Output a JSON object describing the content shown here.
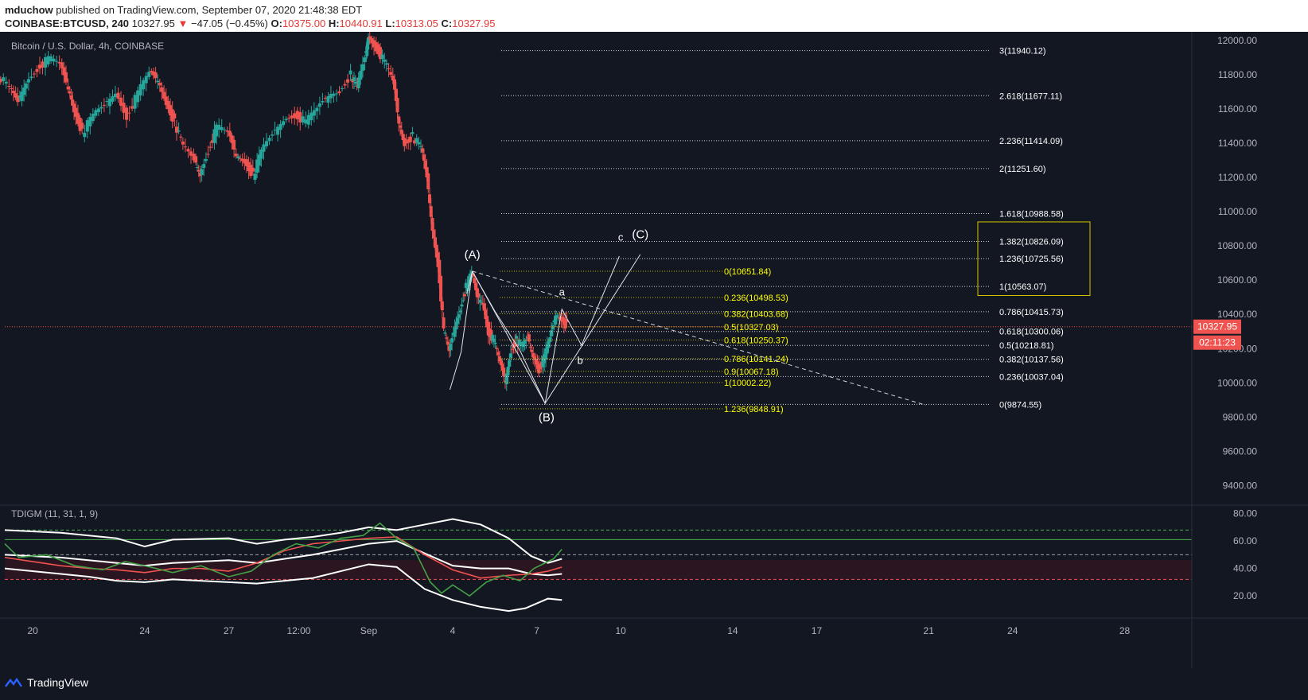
{
  "header": {
    "author": "mduchow",
    "published": "published on TradingView.com, September 07, 2020 21:48:38 EDT",
    "symbol_tf": "COINBASE:BTCUSD, 240",
    "last": "10327.95",
    "change": "−47.05 (−0.45%)",
    "o_label": "O:",
    "o": "10375.00",
    "h_label": "H:",
    "h": "10440.91",
    "l_label": "L:",
    "l": "10313.05",
    "c_label": "C:",
    "c": "10327.95"
  },
  "footer": {
    "brand": "TradingView"
  },
  "colors": {
    "bg": "#131722",
    "up": "#26a69a",
    "down": "#ef5350",
    "fib": "#ffff00",
    "axis_text": "#b2b5be",
    "box": "#d4c500"
  },
  "chart_data": [
    {
      "type": "candlestick",
      "title": "Bitcoin / U.S. Dollar, 4h, COINBASE",
      "ylim": [
        9300,
        12050
      ],
      "y_ticks": [
        "12000.00",
        "11800.00",
        "11600.00",
        "11400.00",
        "11200.00",
        "11000.00",
        "10800.00",
        "10600.00",
        "10400.00",
        "10200.00",
        "10000.00",
        "9800.00",
        "9600.00",
        "9400.00"
      ],
      "x_ticks": [
        {
          "label": "20",
          "pos": 0.0
        },
        {
          "label": "24",
          "pos": 4.0
        },
        {
          "label": "27",
          "pos": 7.0
        },
        {
          "label": "12:00",
          "pos": 9.5
        },
        {
          "label": "Sep",
          "pos": 12.0
        },
        {
          "label": "4",
          "pos": 15.0
        },
        {
          "label": "7",
          "pos": 18.0
        },
        {
          "label": "10",
          "pos": 21.0
        },
        {
          "label": "14",
          "pos": 25.0
        },
        {
          "label": "17",
          "pos": 28.0
        },
        {
          "label": "21",
          "pos": 32.0
        },
        {
          "label": "24",
          "pos": 35.0
        },
        {
          "label": "28",
          "pos": 39.0
        }
      ],
      "x_range": [
        -1.0,
        41.4
      ],
      "price_path": [
        [
          -1.2,
          11800
        ],
        [
          -0.8,
          11720
        ],
        [
          -0.5,
          11640
        ],
        [
          -0.2,
          11760
        ],
        [
          0.2,
          11840
        ],
        [
          0.6,
          11890
        ],
        [
          1.0,
          11860
        ],
        [
          1.3,
          11720
        ],
        [
          1.5,
          11600
        ],
        [
          1.8,
          11460
        ],
        [
          2.2,
          11560
        ],
        [
          2.6,
          11620
        ],
        [
          3.0,
          11700
        ],
        [
          3.4,
          11560
        ],
        [
          3.8,
          11690
        ],
        [
          4.2,
          11810
        ],
        [
          4.5,
          11770
        ],
        [
          4.8,
          11640
        ],
        [
          5.1,
          11520
        ],
        [
          5.4,
          11380
        ],
        [
          5.8,
          11300
        ],
        [
          6.0,
          11220
        ],
        [
          6.3,
          11360
        ],
        [
          6.6,
          11490
        ],
        [
          7.0,
          11460
        ],
        [
          7.3,
          11330
        ],
        [
          7.6,
          11300
        ],
        [
          7.9,
          11210
        ],
        [
          8.2,
          11350
        ],
        [
          8.6,
          11450
        ],
        [
          9.0,
          11540
        ],
        [
          9.4,
          11570
        ],
        [
          9.8,
          11520
        ],
        [
          10.2,
          11600
        ],
        [
          10.6,
          11680
        ],
        [
          11.0,
          11710
        ],
        [
          11.4,
          11800
        ],
        [
          11.6,
          11720
        ],
        [
          11.9,
          11900
        ],
        [
          12.0,
          12030
        ],
        [
          12.3,
          11960
        ],
        [
          12.6,
          11870
        ],
        [
          12.9,
          11760
        ],
        [
          13.1,
          11520
        ],
        [
          13.3,
          11400
        ],
        [
          13.6,
          11440
        ],
        [
          13.9,
          11370
        ],
        [
          14.1,
          11200
        ],
        [
          14.3,
          10900
        ],
        [
          14.5,
          10700
        ],
        [
          14.7,
          10300
        ],
        [
          14.9,
          10180
        ],
        [
          15.1,
          10330
        ],
        [
          15.3,
          10440
        ],
        [
          15.5,
          10560
        ],
        [
          15.7,
          10640
        ],
        [
          15.9,
          10500
        ],
        [
          16.1,
          10470
        ],
        [
          16.3,
          10300
        ],
        [
          16.5,
          10240
        ],
        [
          16.7,
          10120
        ],
        [
          16.9,
          10010
        ],
        [
          17.1,
          10190
        ],
        [
          17.3,
          10250
        ],
        [
          17.5,
          10210
        ],
        [
          17.7,
          10260
        ],
        [
          17.9,
          10160
        ],
        [
          18.1,
          10080
        ],
        [
          18.3,
          10150
        ],
        [
          18.5,
          10260
        ],
        [
          18.7,
          10400
        ],
        [
          18.9,
          10380
        ],
        [
          19.1,
          10330
        ]
      ],
      "hlines": [
        {
          "price": 10327.95,
          "label": "10327.95",
          "color": "#ef5350"
        }
      ],
      "last_price_tag": "10327.95",
      "countdown_tag": "02:11:23",
      "fib_extension_levels": [
        {
          "ratio": "3",
          "label": "3(11940.12)",
          "price": 11940.12
        },
        {
          "ratio": "2.618",
          "label": "2.618(11677.11)",
          "price": 11677.11
        },
        {
          "ratio": "2.236",
          "label": "2.236(11414.09)",
          "price": 11414.09
        },
        {
          "ratio": "2",
          "label": "2(11251.60)",
          "price": 11251.6
        },
        {
          "ratio": "1.618",
          "label": "1.618(10988.58)",
          "price": 10988.58
        },
        {
          "ratio": "1.382",
          "label": "1.382(10826.09)",
          "price": 10826.09
        },
        {
          "ratio": "1.236",
          "label": "1.236(10725.56)",
          "price": 10725.56
        },
        {
          "ratio": "1",
          "label": "1(10563.07)",
          "price": 10563.07
        },
        {
          "ratio": "0.786",
          "label": "0.786(10415.73)",
          "price": 10415.73
        },
        {
          "ratio": "0.618",
          "label": "0.618(10300.06)",
          "price": 10300.06
        },
        {
          "ratio": "0.5",
          "label": "0.5(10218.81)",
          "price": 10218.81
        },
        {
          "ratio": "0.382",
          "label": "0.382(10137.56)",
          "price": 10137.56
        },
        {
          "ratio": "0.236",
          "label": "0.236(10037.04)",
          "price": 10037.04
        },
        {
          "ratio": "0",
          "label": "0(9874.55)",
          "price": 9874.55
        }
      ],
      "fib_retracement_levels": [
        {
          "label": "0(10651.84)",
          "price": 10651.84
        },
        {
          "label": "0.236(10498.53)",
          "price": 10498.53
        },
        {
          "label": "0.382(10403.68)",
          "price": 10403.68
        },
        {
          "label": "0.5(10327.03)",
          "price": 10327.03
        },
        {
          "label": "0.618(10250.37)",
          "price": 10250.37
        },
        {
          "label": "0.786(10141.24)",
          "price": 10141.24
        },
        {
          "label": "0.9(10067.18)",
          "price": 10067.18
        },
        {
          "label": "1(10002.22)",
          "price": 10002.22
        },
        {
          "label": "1.236(9848.91)",
          "price": 9848.91
        }
      ],
      "wave_labels": [
        {
          "text": "(A)",
          "x": 15.7,
          "price": 10725
        },
        {
          "text": "(B)",
          "x": 18.35,
          "price": 9775
        },
        {
          "text": "c",
          "x": 21.0,
          "price": 10830
        },
        {
          "text": "(C)",
          "x": 21.7,
          "price": 10845
        },
        {
          "text": "a",
          "x": 18.9,
          "price": 10510
        },
        {
          "text": "b",
          "x": 19.55,
          "price": 10110
        }
      ],
      "wave_lines": [
        [
          [
            15.7,
            10652
          ],
          [
            16.5,
            10420
          ],
          [
            17.4,
            10190
          ],
          [
            18.3,
            9880
          ],
          [
            18.9,
            10430
          ],
          [
            19.6,
            10220
          ],
          [
            20.95,
            10740
          ]
        ],
        [
          [
            15.7,
            10652
          ],
          [
            18.3,
            9880
          ],
          [
            21.7,
            10750
          ]
        ],
        [
          [
            14.9,
            9960
          ],
          [
            15.3,
            10180
          ],
          [
            15.7,
            10652
          ],
          [
            15.5,
            10520
          ]
        ]
      ],
      "dashed_trend": [
        [
          15.7,
          10652
        ],
        [
          31.9,
          9870
        ]
      ]
    },
    {
      "type": "line",
      "title": "TDIGM (11, 31, 1, 9)",
      "ylim": [
        5,
        85
      ],
      "y_ticks": [
        "80.00",
        "60.00",
        "40.00",
        "20.00"
      ],
      "levels": [
        {
          "value": 68,
          "color": "#4caf50",
          "style": "dashed"
        },
        {
          "value": 61,
          "color": "#4caf50",
          "style": "solid"
        },
        {
          "value": 50,
          "color": "#9e9e9e",
          "style": "dashed"
        },
        {
          "value": 32,
          "color": "#ef5350",
          "style": "dashed"
        }
      ],
      "band_zone": [
        32,
        46
      ],
      "series": [
        {
          "color": "#ffffff",
          "values": [
            [
              -1,
              68
            ],
            [
              1,
              66
            ],
            [
              3,
              62
            ],
            [
              4,
              56
            ],
            [
              5,
              61
            ],
            [
              7,
              62
            ],
            [
              8,
              58
            ],
            [
              9,
              61
            ],
            [
              10,
              63
            ],
            [
              11,
              66
            ],
            [
              12,
              70
            ],
            [
              13,
              68
            ],
            [
              14,
              72
            ],
            [
              15,
              76
            ],
            [
              16,
              72
            ],
            [
              17,
              62
            ],
            [
              17.8,
              49
            ],
            [
              18.4,
              44
            ],
            [
              18.9,
              47
            ]
          ]
        },
        {
          "color": "#ffffff",
          "values": [
            [
              -1,
              50
            ],
            [
              1,
              48
            ],
            [
              3,
              44
            ],
            [
              4,
              42
            ],
            [
              5,
              44
            ],
            [
              7,
              46
            ],
            [
              8,
              44
            ],
            [
              9,
              47
            ],
            [
              10,
              50
            ],
            [
              11,
              54
            ],
            [
              12,
              58
            ],
            [
              13,
              60
            ],
            [
              14,
              51
            ],
            [
              15,
              42
            ],
            [
              16,
              40
            ],
            [
              17,
              40
            ],
            [
              17.8,
              36
            ],
            [
              18.4,
              35
            ],
            [
              18.9,
              36
            ]
          ]
        },
        {
          "color": "#ffffff",
          "values": [
            [
              -1,
              40
            ],
            [
              1,
              36
            ],
            [
              2,
              34
            ],
            [
              3,
              31
            ],
            [
              4,
              30
            ],
            [
              5,
              32
            ],
            [
              7,
              30
            ],
            [
              8,
              29
            ],
            [
              9,
              31
            ],
            [
              10,
              33
            ],
            [
              11,
              38
            ],
            [
              12,
              43
            ],
            [
              13,
              41
            ],
            [
              14,
              25
            ],
            [
              15,
              17
            ],
            [
              16,
              12
            ],
            [
              17,
              9
            ],
            [
              17.6,
              11
            ],
            [
              18.4,
              18
            ],
            [
              18.9,
              17
            ]
          ]
        },
        {
          "color": "#ef5350",
          "values": [
            [
              -1,
              48
            ],
            [
              1,
              42
            ],
            [
              2,
              40
            ],
            [
              3,
              39
            ],
            [
              4,
              37
            ],
            [
              5,
              40
            ],
            [
              6,
              40
            ],
            [
              7,
              38
            ],
            [
              8,
              44
            ],
            [
              9,
              53
            ],
            [
              10,
              58
            ],
            [
              11,
              60
            ],
            [
              12,
              62
            ],
            [
              13,
              63
            ],
            [
              14,
              50
            ],
            [
              15,
              39
            ],
            [
              16,
              33
            ],
            [
              17,
              35
            ],
            [
              17.8,
              36
            ],
            [
              18.4,
              38
            ],
            [
              18.9,
              41
            ]
          ]
        },
        {
          "color": "#43a047",
          "values": [
            [
              -1,
              58
            ],
            [
              -0.5,
              48
            ],
            [
              0.5,
              50
            ],
            [
              1.5,
              42
            ],
            [
              2.5,
              39
            ],
            [
              3.3,
              45
            ],
            [
              4.2,
              41
            ],
            [
              5,
              37
            ],
            [
              6,
              42
            ],
            [
              7,
              34
            ],
            [
              7.8,
              38
            ],
            [
              8.6,
              50
            ],
            [
              9.4,
              58
            ],
            [
              10.2,
              55
            ],
            [
              11,
              62
            ],
            [
              11.8,
              64
            ],
            [
              12.4,
              73
            ],
            [
              13,
              62
            ],
            [
              13.6,
              55
            ],
            [
              14.2,
              30
            ],
            [
              14.6,
              22
            ],
            [
              15,
              28
            ],
            [
              15.6,
              20
            ],
            [
              16.2,
              30
            ],
            [
              16.8,
              35
            ],
            [
              17.4,
              31
            ],
            [
              17.9,
              40
            ],
            [
              18.3,
              44
            ],
            [
              18.6,
              47
            ],
            [
              18.9,
              54
            ]
          ]
        }
      ]
    }
  ]
}
